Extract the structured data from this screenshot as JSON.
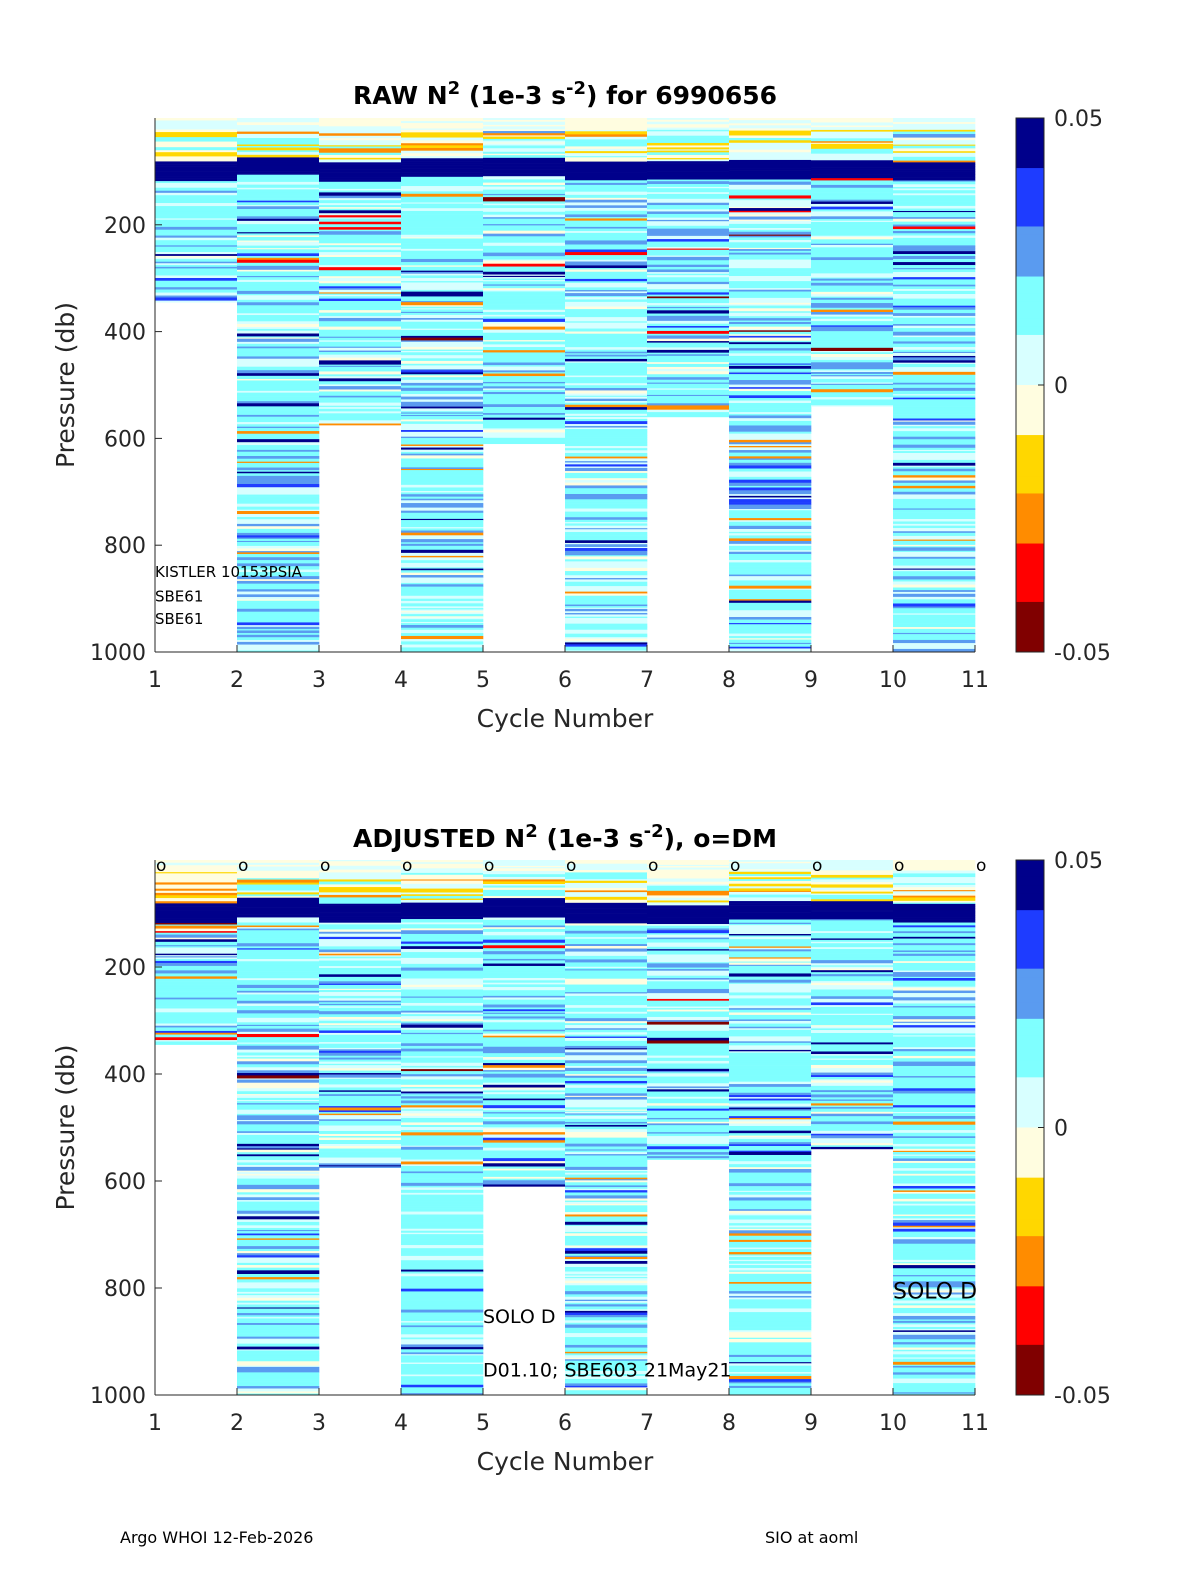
{
  "footer": {
    "left": "Argo WHOI 12-Feb-2026",
    "right": "SIO at aoml"
  },
  "colormap": [
    "#800000",
    "#ff0000",
    "#ff8c00",
    "#ffd700",
    "#fffde0",
    "#d8ffff",
    "#7fffff",
    "#5a9bf0",
    "#1e3cff",
    "#00008b"
  ],
  "chart_data": [
    {
      "type": "heatmap",
      "panel": "raw",
      "title_parts": {
        "prefix": "RAW N",
        "sup1": "2",
        "middle": " (1e-3 s",
        "sup2": "-2",
        "suffix": ") for 6990656"
      },
      "xlabel": "Cycle Number",
      "ylabel": "Pressure (db)",
      "xlim": [
        1,
        11
      ],
      "ylim": [
        0,
        1000
      ],
      "xticks": [
        "1",
        "2",
        "3",
        "4",
        "5",
        "6",
        "7",
        "8",
        "9",
        "10",
        "11"
      ],
      "yticks": [
        "200",
        "400",
        "600",
        "800",
        "1000"
      ],
      "ytick_values": [
        200,
        400,
        600,
        800,
        1000
      ],
      "colorbar": {
        "min": -0.05,
        "max": 0.05,
        "labels": [
          "0.05",
          "0",
          "-0.05"
        ]
      },
      "columns": [
        {
          "cycle": 1,
          "max_pressure": 345,
          "strong_layer": 100
        },
        {
          "cycle": 2,
          "max_pressure": 1000,
          "strong_layer": 90
        },
        {
          "cycle": 3,
          "max_pressure": 575,
          "strong_layer": 100
        },
        {
          "cycle": 4,
          "max_pressure": 1000,
          "strong_layer": 95
        },
        {
          "cycle": 5,
          "max_pressure": 610,
          "strong_layer": 90
        },
        {
          "cycle": 6,
          "max_pressure": 1000,
          "strong_layer": 100
        },
        {
          "cycle": 7,
          "max_pressure": 560,
          "strong_layer": 100
        },
        {
          "cycle": 8,
          "max_pressure": 1000,
          "strong_layer": 95
        },
        {
          "cycle": 9,
          "max_pressure": 540,
          "strong_layer": 95
        },
        {
          "cycle": 10,
          "max_pressure": 1000,
          "strong_layer": 100
        }
      ],
      "annotations": [
        {
          "text": "KISTLER 10153PSIA",
          "x": 1,
          "y": 860
        },
        {
          "text": "SBE61",
          "x": 1,
          "y": 905
        },
        {
          "text": "SBE61",
          "x": 1,
          "y": 948
        }
      ]
    },
    {
      "type": "heatmap",
      "panel": "adjusted",
      "title_parts": {
        "prefix": "ADJUSTED N",
        "sup1": "2",
        "middle": " (1e-3 s",
        "sup2": "-2",
        "suffix": "), o=DM"
      },
      "xlabel": "Cycle Number",
      "ylabel": "Pressure (db)",
      "xlim": [
        1,
        11
      ],
      "ylim": [
        0,
        1000
      ],
      "xticks": [
        "1",
        "2",
        "3",
        "4",
        "5",
        "6",
        "7",
        "8",
        "9",
        "10",
        "11"
      ],
      "yticks": [
        "200",
        "400",
        "600",
        "800",
        "1000"
      ],
      "ytick_values": [
        200,
        400,
        600,
        800,
        1000
      ],
      "colorbar": {
        "min": -0.05,
        "max": 0.05,
        "labels": [
          "0.05",
          "0",
          "-0.05"
        ]
      },
      "dm_marker": "o",
      "dm_cycles": [
        1,
        2,
        3,
        4,
        5,
        6,
        7,
        8,
        9,
        10,
        11
      ],
      "columns": [
        {
          "cycle": 1,
          "max_pressure": 345,
          "strong_layer": 100
        },
        {
          "cycle": 2,
          "max_pressure": 1000,
          "strong_layer": 90
        },
        {
          "cycle": 3,
          "max_pressure": 575,
          "strong_layer": 100
        },
        {
          "cycle": 4,
          "max_pressure": 1000,
          "strong_layer": 95
        },
        {
          "cycle": 5,
          "max_pressure": 610,
          "strong_layer": 90
        },
        {
          "cycle": 6,
          "max_pressure": 1000,
          "strong_layer": 100
        },
        {
          "cycle": 7,
          "max_pressure": 560,
          "strong_layer": 100
        },
        {
          "cycle": 8,
          "max_pressure": 1000,
          "strong_layer": 95
        },
        {
          "cycle": 9,
          "max_pressure": 540,
          "strong_layer": 95
        },
        {
          "cycle": 10,
          "max_pressure": 1000,
          "strong_layer": 100
        }
      ],
      "annotations": [
        {
          "text": "SOLO D",
          "x": 5,
          "y": 865,
          "size": "small"
        },
        {
          "text": "D01.10; SBE603 21May21",
          "x": 5,
          "y": 965,
          "size": "small"
        },
        {
          "text": "SOLO D",
          "x": 10,
          "y": 820,
          "size": "large"
        }
      ]
    }
  ]
}
